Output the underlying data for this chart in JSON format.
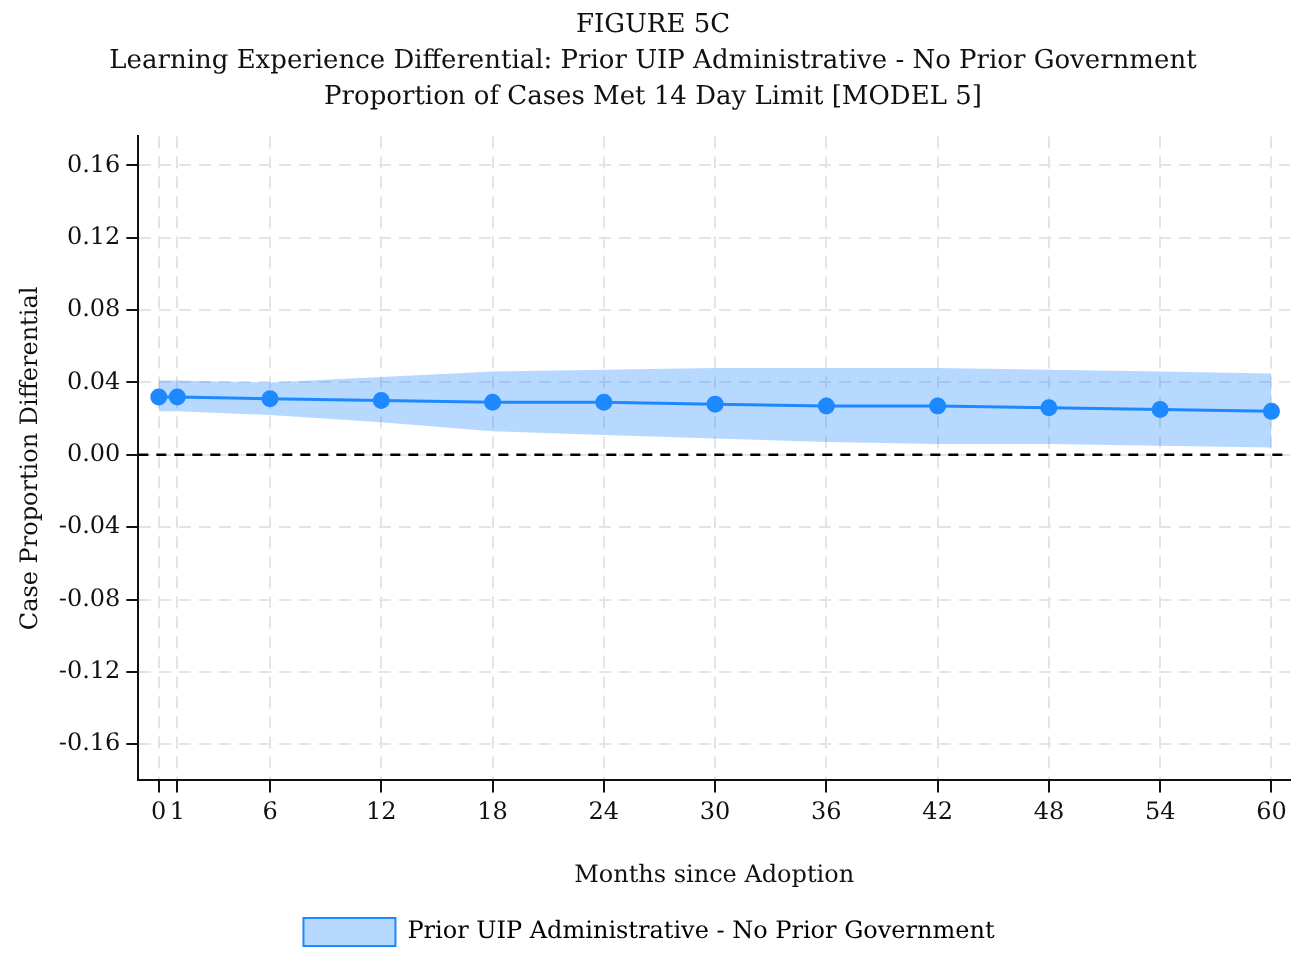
{
  "chart_data": {
    "type": "line",
    "title": "FIGURE 5C",
    "subtitle": "Learning Experience Differential: Prior UIP Administrative - No Prior Government\nProportion of Cases Met 14 Day Limit [MODEL 5]",
    "xlabel": "Months since Adoption",
    "ylabel": "Case Proportion Differential",
    "x": [
      0,
      1,
      6,
      12,
      18,
      24,
      30,
      36,
      42,
      48,
      54,
      60
    ],
    "series": [
      {
        "name": "Prior UIP Administrative - No Prior Government",
        "color": "#1e88ff",
        "values": [
          0.032,
          0.032,
          0.031,
          0.03,
          0.029,
          0.029,
          0.028,
          0.027,
          0.027,
          0.026,
          0.025,
          0.024
        ],
        "lower": [
          0.024,
          0.024,
          0.022,
          0.018,
          0.013,
          0.011,
          0.009,
          0.007,
          0.006,
          0.006,
          0.005,
          0.004
        ],
        "upper": [
          0.041,
          0.041,
          0.04,
          0.043,
          0.046,
          0.047,
          0.048,
          0.048,
          0.048,
          0.047,
          0.046,
          0.045
        ]
      }
    ],
    "xlim": [
      -1.1,
      61
    ],
    "xticks": [
      {
        "value": 0,
        "label": "0"
      },
      {
        "value": 1,
        "label": "1"
      },
      6,
      12,
      18,
      24,
      30,
      36,
      42,
      48,
      54,
      60
    ],
    "ylim": [
      -0.18,
      0.176
    ],
    "yticks": [
      {
        "value": -0.16,
        "label": "-0.16"
      },
      {
        "value": -0.12,
        "label": "-0.12"
      },
      {
        "value": -0.08,
        "label": "-0.08"
      },
      {
        "value": -0.04,
        "label": "-0.04"
      },
      {
        "value": 0,
        "label": "0.00"
      },
      {
        "value": 0.04,
        "label": "0.04"
      },
      {
        "value": 0.08,
        "label": "0.08"
      },
      {
        "value": 0.12,
        "label": "0.12"
      },
      {
        "value": 0.16,
        "label": "0.16"
      }
    ],
    "ref_lines": [
      {
        "axis": "y",
        "value": 0,
        "color": "#000000",
        "line_style": "dashed"
      }
    ],
    "grid": true,
    "legend": "bottom",
    "marker": "circle",
    "line_style": "solid"
  }
}
